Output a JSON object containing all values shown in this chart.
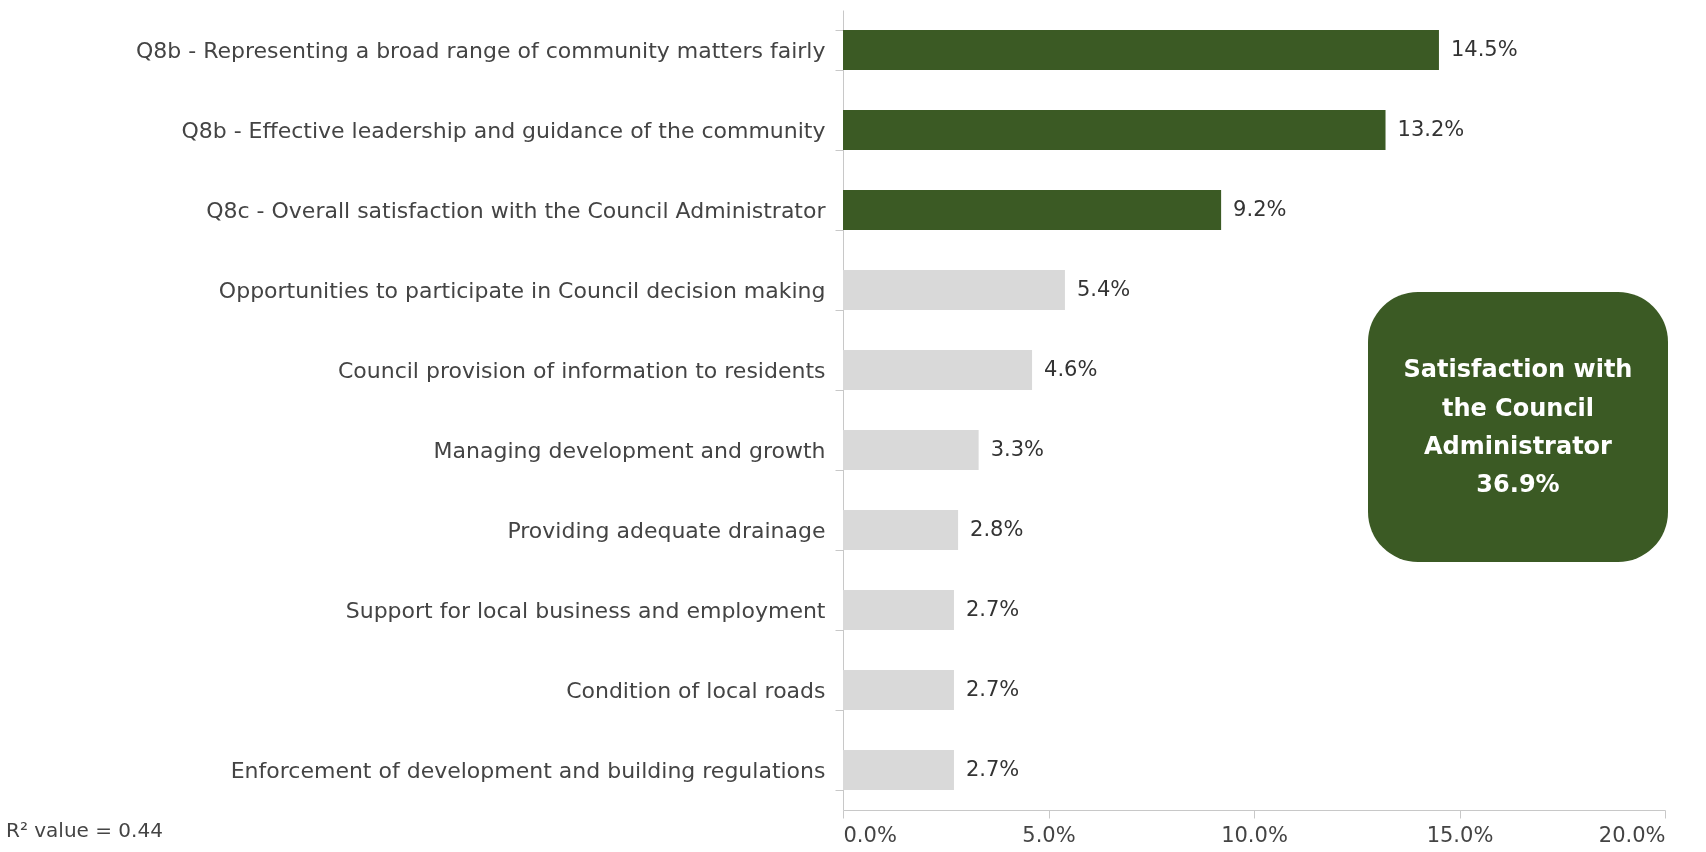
{
  "chart_data": {
    "type": "bar",
    "orientation": "horizontal",
    "categories": [
      "Q8b - Representing a broad range of community matters fairly",
      "Q8b - Effective leadership and guidance of the community",
      "Q8c - Overall satisfaction with the Council Administrator",
      "Opportunities to participate in Council decision making",
      "Council provision of information to residents",
      "Managing development and growth",
      "Providing adequate drainage",
      "Support for local business and employment",
      "Condition of local roads",
      "Enforcement of development and building regulations"
    ],
    "values": [
      14.5,
      13.2,
      9.2,
      5.4,
      4.6,
      3.3,
      2.8,
      2.7,
      2.7,
      2.7
    ],
    "colors": [
      "#3b5a24",
      "#3b5a24",
      "#3b5a24",
      "#d9d9d9",
      "#d9d9d9",
      "#d9d9d9",
      "#d9d9d9",
      "#d9d9d9",
      "#d9d9d9",
      "#d9d9d9"
    ],
    "value_labels": [
      "14.5%",
      "13.2%",
      "9.2%",
      "5.4%",
      "4.6%",
      "3.3%",
      "2.8%",
      "2.7%",
      "2.7%",
      "2.7%"
    ],
    "xlim": [
      0,
      20
    ],
    "xticks": [
      {
        "value": 0,
        "label": "0.0%"
      },
      {
        "value": 5,
        "label": "5.0%"
      },
      {
        "value": 10,
        "label": "10.0%"
      },
      {
        "value": 15,
        "label": "15.0%"
      },
      {
        "value": 20,
        "label": "20.0%"
      }
    ],
    "grid": false,
    "annotations": [
      "Satisfaction with the Council Administrator 36.9%",
      "R² value = 0.44"
    ]
  }
}
